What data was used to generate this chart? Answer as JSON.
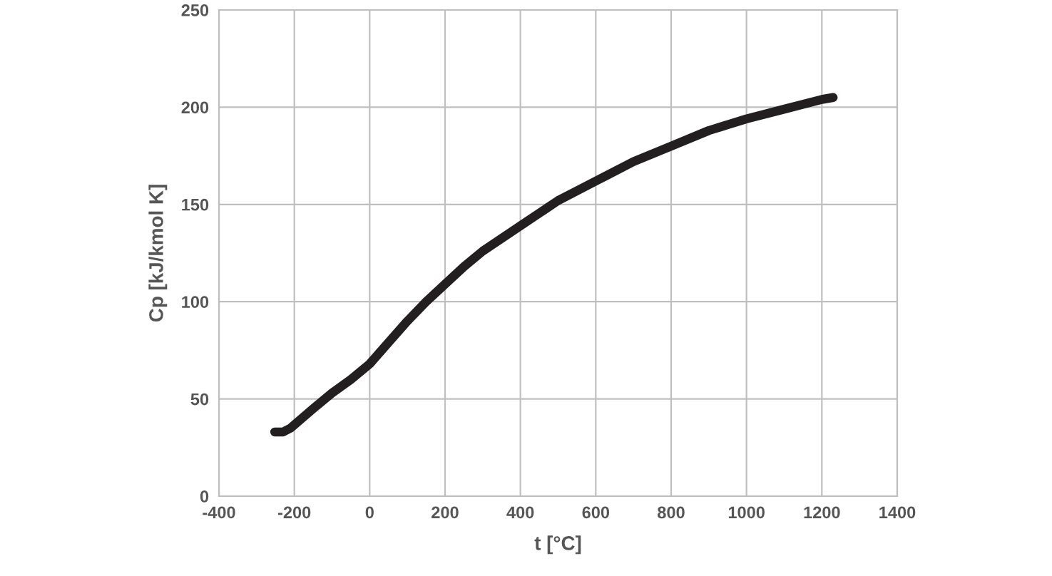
{
  "chart_data": {
    "type": "line",
    "xlabel": "t [°C]",
    "ylabel": "Cp [kJ/kmol K]",
    "series": [
      {
        "color": "#231f20",
        "x": [
          -252,
          -230,
          -210,
          -150,
          -100,
          -50,
          0,
          50,
          100,
          150,
          200,
          250,
          300,
          400,
          500,
          600,
          700,
          800,
          900,
          1000,
          1100,
          1200,
          1230
        ],
        "values": [
          33,
          33,
          35,
          45,
          53,
          60,
          68,
          79,
          90,
          100,
          109,
          118,
          126,
          139,
          152,
          162,
          172,
          180,
          188,
          194,
          199,
          204,
          205
        ]
      }
    ],
    "xlim": [
      -400,
      1400
    ],
    "xticks": [
      -400,
      -200,
      0,
      200,
      400,
      600,
      800,
      1000,
      1200,
      1400
    ],
    "ylim": [
      0,
      250
    ],
    "yticks": [
      0,
      50,
      100,
      150,
      200,
      250
    ],
    "grid": true,
    "line_style": "solid"
  }
}
